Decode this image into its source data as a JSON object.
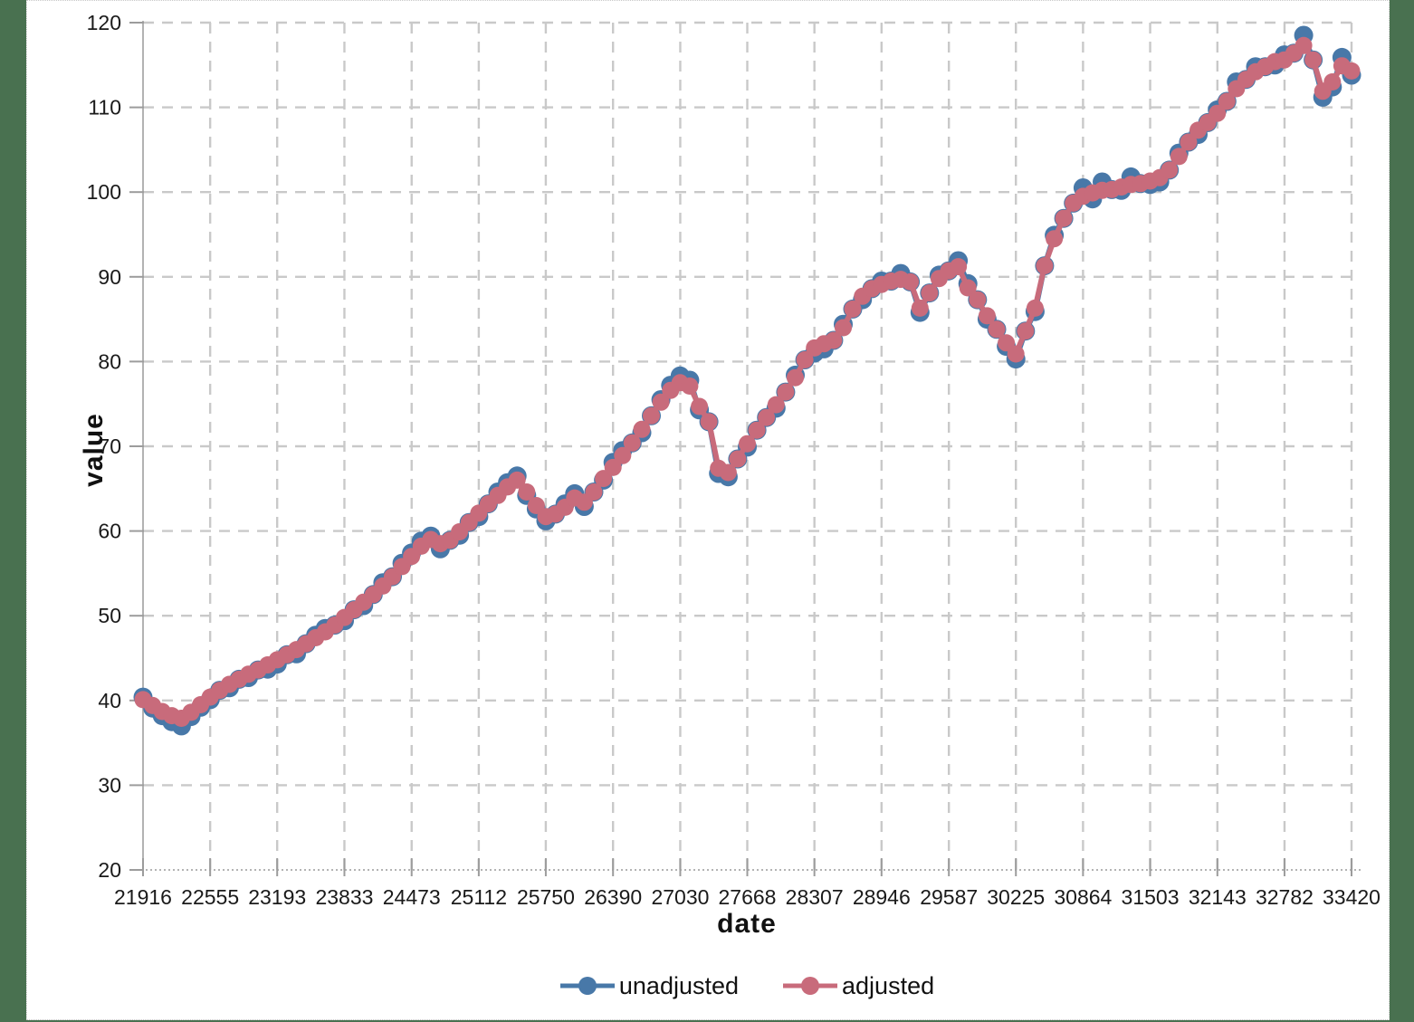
{
  "chart_data": {
    "type": "line",
    "title": "",
    "xlabel": "date",
    "ylabel": "value",
    "xlim": [
      21916,
      33420
    ],
    "ylim": [
      20,
      120
    ],
    "x_tick_labels": [
      21916,
      22555,
      23193,
      23833,
      24473,
      25112,
      25750,
      26390,
      27030,
      27668,
      28307,
      28946,
      29587,
      30225,
      30864,
      31503,
      32143,
      32782,
      33420
    ],
    "y_tick_labels": [
      20,
      30,
      40,
      50,
      60,
      70,
      80,
      90,
      100,
      110,
      120
    ],
    "grid": "both-dashed",
    "legend_position": "bottom-center",
    "x": [
      21916,
      22007,
      22099,
      22190,
      22281,
      22373,
      22464,
      22555,
      22646,
      22738,
      22829,
      22920,
      23012,
      23103,
      23194,
      23286,
      23377,
      23468,
      23559,
      23651,
      23742,
      23833,
      23925,
      24016,
      24107,
      24199,
      24290,
      24381,
      24472,
      24564,
      24655,
      24746,
      24838,
      24929,
      25020,
      25112,
      25203,
      25294,
      25385,
      25477,
      25568,
      25659,
      25751,
      25842,
      25933,
      26025,
      26116,
      26207,
      26299,
      26390,
      26481,
      26572,
      26664,
      26755,
      26846,
      26938,
      27029,
      27120,
      27212,
      27303,
      27394,
      27486,
      27577,
      27668,
      27759,
      27851,
      27942,
      28033,
      28125,
      28216,
      28307,
      28399,
      28490,
      28581,
      28672,
      28764,
      28855,
      28946,
      29038,
      29129,
      29220,
      29312,
      29403,
      29494,
      29585,
      29677,
      29768,
      29859,
      29951,
      30042,
      30133,
      30225,
      30316,
      30407,
      30498,
      30590,
      30681,
      30772,
      30864,
      30955,
      31046,
      31138,
      31229,
      31320,
      31411,
      31503,
      31594,
      31685,
      31777,
      31868,
      31959,
      32051,
      32142,
      32233,
      32324,
      32416,
      32507,
      32598,
      32690,
      32781,
      32872,
      32964,
      33055,
      33146,
      33237,
      33329,
      33420
    ],
    "series": [
      {
        "name": "unadjusted",
        "color": "#4878a8",
        "values": [
          40.4,
          39.1,
          38.2,
          37.5,
          37.0,
          38.1,
          39.2,
          40.1,
          41.2,
          41.5,
          42.5,
          42.7,
          43.6,
          43.7,
          44.3,
          45.4,
          45.5,
          46.7,
          47.7,
          48.5,
          48.9,
          49.4,
          50.7,
          51.2,
          52.5,
          53.9,
          54.6,
          56.2,
          57.4,
          58.8,
          59.4,
          57.9,
          58.9,
          59.5,
          61.0,
          61.7,
          63.2,
          64.6,
          65.7,
          66.5,
          64.2,
          62.6,
          61.2,
          62.0,
          63.2,
          64.4,
          62.9,
          64.6,
          66.0,
          68.1,
          69.5,
          70.4,
          71.6,
          73.6,
          75.5,
          77.2,
          78.3,
          77.8,
          74.3,
          72.9,
          66.8,
          66.4,
          68.5,
          69.9,
          71.9,
          73.4,
          74.5,
          76.4,
          78.4,
          80.2,
          81.0,
          81.5,
          82.5,
          84.4,
          86.2,
          87.3,
          88.6,
          89.5,
          89.5,
          90.4,
          89.4,
          85.8,
          88.1,
          90.2,
          90.7,
          91.9,
          89.2,
          87.3,
          85.0,
          83.8,
          81.8,
          80.3,
          83.6,
          85.9,
          91.3,
          94.9,
          96.9,
          98.7,
          100.5,
          99.2,
          101.2,
          100.3,
          100.2,
          101.8,
          101.0,
          100.9,
          101.2,
          102.6,
          104.6,
          105.9,
          106.8,
          108.2,
          109.7,
          110.7,
          113.0,
          113.3,
          114.8,
          114.8,
          115.0,
          116.2,
          116.4,
          118.5,
          115.6,
          111.2,
          112.4,
          115.9,
          113.8
        ]
      },
      {
        "name": "adjusted",
        "color": "#c86b7b",
        "values": [
          40.1,
          39.4,
          38.7,
          38.2,
          37.9,
          38.6,
          39.5,
          40.4,
          41.2,
          41.9,
          42.5,
          43.1,
          43.6,
          44.2,
          44.8,
          45.4,
          46.0,
          46.7,
          47.4,
          48.1,
          48.9,
          49.8,
          50.7,
          51.6,
          52.5,
          53.5,
          54.6,
          55.8,
          57.0,
          58.2,
          59.0,
          58.5,
          58.9,
          59.9,
          61.0,
          62.1,
          63.2,
          64.2,
          65.2,
          66.0,
          64.6,
          63.0,
          61.7,
          62.0,
          62.8,
          63.9,
          63.4,
          64.6,
          66.2,
          67.5,
          68.9,
          70.4,
          72.0,
          73.6,
          75.2,
          76.6,
          77.5,
          77.1,
          74.7,
          72.9,
          67.4,
          66.9,
          68.5,
          70.3,
          71.9,
          73.4,
          74.9,
          76.4,
          78.1,
          80.2,
          81.6,
          82.1,
          82.5,
          84.0,
          86.2,
          87.7,
          88.6,
          89.1,
          89.5,
          89.7,
          89.4,
          86.3,
          88.1,
          89.8,
          90.7,
          91.2,
          88.7,
          87.3,
          85.4,
          83.8,
          82.2,
          80.9,
          83.6,
          86.3,
          91.3,
          94.5,
          96.9,
          98.7,
          99.5,
          99.9,
          100.2,
          100.3,
          100.6,
          100.9,
          101.0,
          101.3,
          101.7,
          102.6,
          104.2,
          105.9,
          107.3,
          108.2,
          109.3,
          110.7,
          112.2,
          113.3,
          114.2,
          114.8,
          115.4,
          115.6,
          116.4,
          117.3,
          115.6,
          111.9,
          113.0,
          114.9,
          114.3
        ]
      }
    ]
  },
  "colors": {
    "background": "#497150",
    "canvas": "#ffffff",
    "gridline": "#c9c9c9",
    "axis_line": "#b3b3b3",
    "tick_mark": "#9c9c9c",
    "text": "#1a1a1a"
  }
}
